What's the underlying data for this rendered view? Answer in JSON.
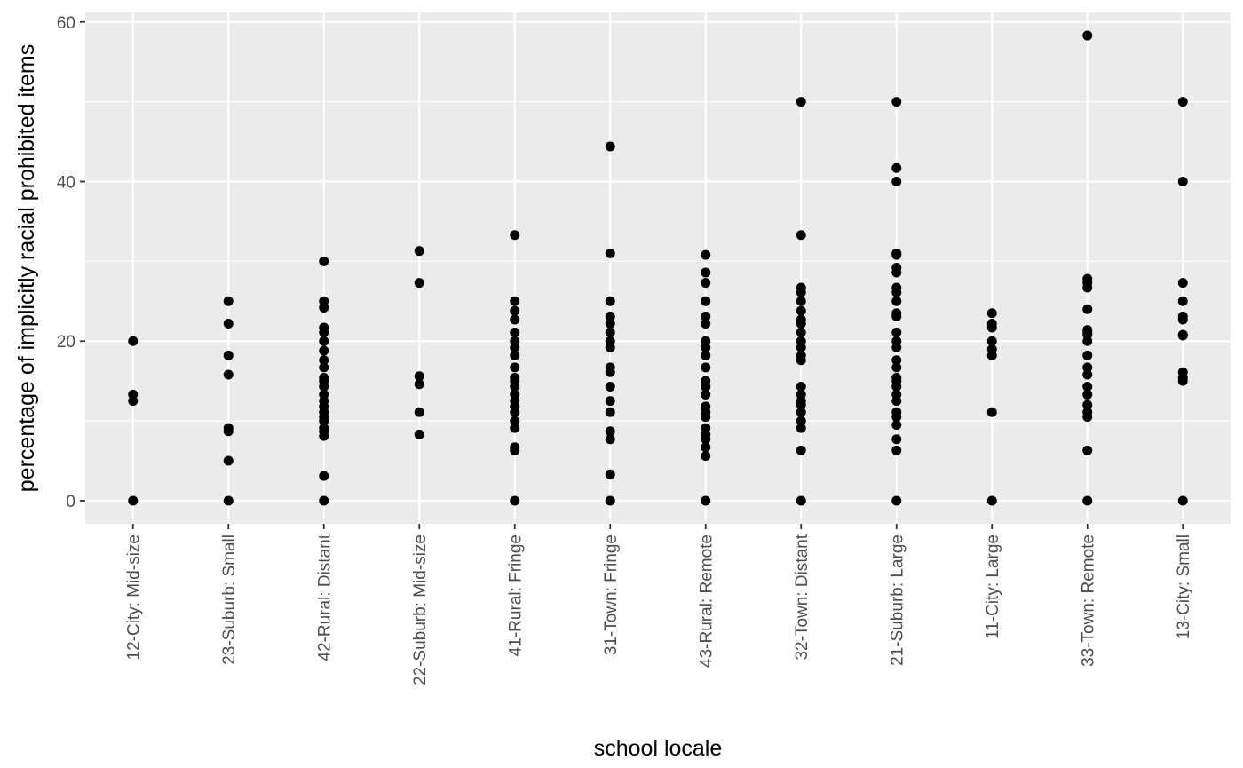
{
  "chart_data": {
    "type": "scatter",
    "xlabel": "school locale",
    "ylabel": "percentage of implicitly racial prohibited items",
    "ylim": [
      -2.9,
      61.2
    ],
    "y_ticks": [
      0,
      20,
      40,
      60
    ],
    "grid": true,
    "categories": [
      "12-City: Mid-size",
      "23-Suburb: Small",
      "42-Rural: Distant",
      "22-Suburb: Mid-size",
      "41-Rural: Fringe",
      "31-Town: Fringe",
      "43-Rural: Remote",
      "32-Town: Distant",
      "21-Suburb: Large",
      "11-City: Large",
      "33-Town: Remote",
      "13-City: Small"
    ],
    "points": [
      [
        0,
        20,
        13.3,
        12.5
      ],
      [
        0,
        5,
        8.7,
        9.1,
        15.8,
        18.2,
        22.2,
        25
      ],
      [
        0,
        3.1,
        8.1,
        8.7,
        9.1,
        10,
        10.5,
        11.1,
        11.8,
        12.5,
        13.3,
        14.3,
        15,
        15.4,
        16.7,
        17.6,
        18.8,
        20,
        21.1,
        21.7,
        24.2,
        25,
        30
      ],
      [
        8.3,
        11.1,
        14.6,
        15.6,
        27.3,
        31.3
      ],
      [
        0,
        6.3,
        6.7,
        9.1,
        10,
        11.1,
        11.8,
        12.5,
        13.3,
        14.3,
        15,
        15.4,
        16.7,
        18.2,
        19.2,
        20,
        21.1,
        22.7,
        23.8,
        25,
        33.3
      ],
      [
        0,
        3.3,
        7.7,
        8.7,
        11.1,
        12.5,
        14.3,
        16.1,
        16.7,
        19.2,
        20,
        21.1,
        22.2,
        23.1,
        25,
        31,
        44.4
      ],
      [
        0,
        5.6,
        6.7,
        7.7,
        8.3,
        9.1,
        10.5,
        11.1,
        11.8,
        13.3,
        14.3,
        15,
        16.7,
        18.2,
        19.2,
        20,
        22.2,
        23.1,
        25,
        27.3,
        28.6,
        30.8
      ],
      [
        0,
        6.3,
        9.1,
        10,
        11.1,
        12,
        12.5,
        13.3,
        14.3,
        17.6,
        18.2,
        19.2,
        20,
        21.1,
        22.2,
        22.7,
        23.8,
        25,
        26.1,
        26.7,
        33.3,
        50
      ],
      [
        0,
        6.3,
        7.7,
        9.5,
        10.5,
        11.1,
        12.5,
        13.3,
        14.3,
        15,
        15.4,
        16.7,
        17.6,
        19.2,
        20,
        21.1,
        23.1,
        23.5,
        25,
        26.1,
        26.7,
        28.6,
        29.2,
        30.8,
        31,
        40,
        41.7,
        50
      ],
      [
        0,
        11.1,
        18.2,
        19,
        20,
        21.7,
        22.2,
        23.5
      ],
      [
        0,
        6.3,
        10.5,
        11.1,
        12,
        13.3,
        14.3,
        15.8,
        16.7,
        18.2,
        20,
        20.8,
        21.1,
        21.4,
        24,
        26.7,
        27.3,
        27.8,
        58.3
      ],
      [
        0,
        15,
        15.4,
        16.1,
        20.7,
        20.8,
        22.7,
        23.1,
        25,
        27.3,
        40,
        50
      ]
    ]
  }
}
